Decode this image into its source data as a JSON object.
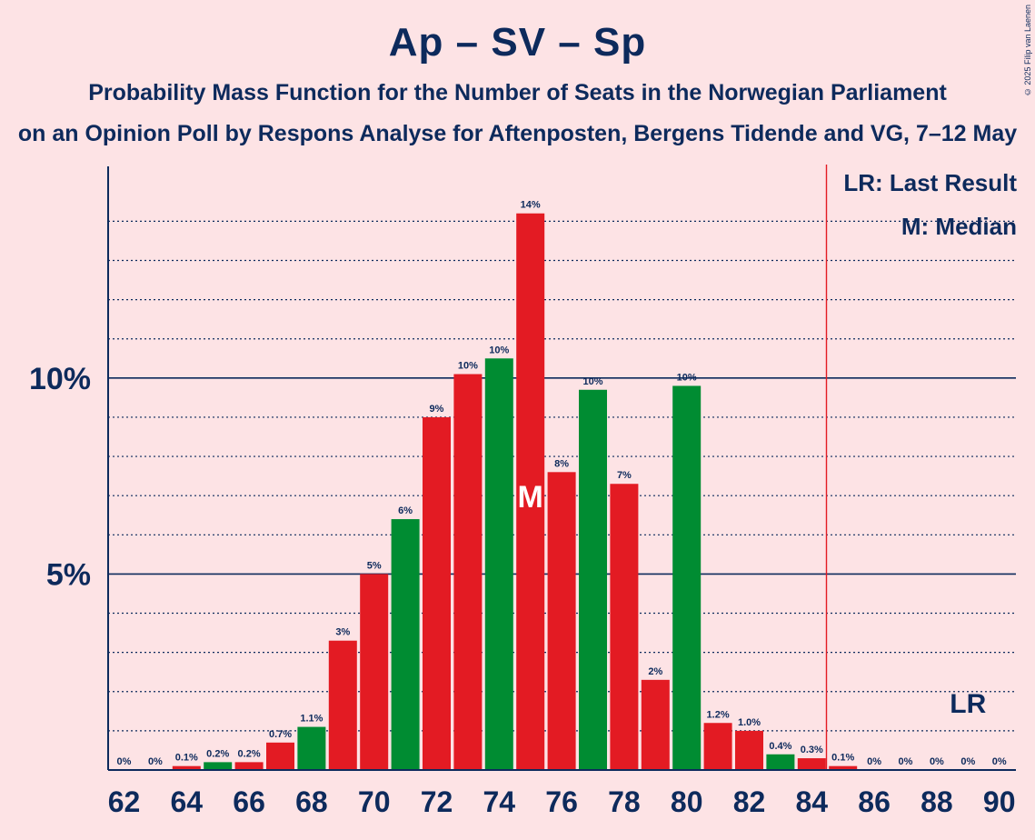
{
  "title": "Ap – SV – Sp",
  "subtitle": "Probability Mass Function for the Number of Seats in the Norwegian Parliament",
  "subtitle2": "on an Opinion Poll by Respons Analyse for Aftenposten, Bergens Tidende and VG, 7–12 May",
  "copyright": "© 2025 Filip van Laenen",
  "legend": {
    "last_result": "LR: Last Result",
    "median": "M: Median"
  },
  "markers": {
    "median_label": "M",
    "last_result_label": "LR"
  },
  "colors": {
    "background": "#fde3e5",
    "text": "#0d2a5c",
    "red": "#e31b23",
    "green": "#008c32",
    "lr_line": "#e31b23"
  },
  "chart_data": {
    "type": "bar",
    "x": [
      62,
      63,
      64,
      65,
      66,
      67,
      68,
      69,
      70,
      71,
      72,
      73,
      74,
      75,
      76,
      77,
      78,
      79,
      80,
      81,
      82,
      83,
      84,
      85,
      86,
      87,
      88,
      89,
      90
    ],
    "values": [
      0,
      0,
      0.1,
      0.2,
      0.2,
      0.7,
      1.1,
      3.3,
      5.0,
      6.4,
      9.0,
      10.1,
      10.5,
      14.2,
      7.6,
      9.7,
      7.3,
      2.3,
      9.8,
      1.2,
      1.0,
      0.4,
      0.3,
      0.1,
      0,
      0,
      0,
      0,
      0
    ],
    "labels": [
      "0%",
      "0%",
      "0.1%",
      "0.2%",
      "0.2%",
      "0.7%",
      "1.1%",
      "3%",
      "5%",
      "6%",
      "9%",
      "10%",
      "10%",
      "14%",
      "8%",
      "10%",
      "7%",
      "2%",
      "10%",
      "1.2%",
      "1.0%",
      "0.4%",
      "0.3%",
      "0.1%",
      "0%",
      "0%",
      "0%",
      "0%",
      "0%"
    ],
    "colors": [
      "red",
      "red",
      "red",
      "green",
      "red",
      "red",
      "green",
      "red",
      "red",
      "green",
      "red",
      "red",
      "green",
      "red",
      "red",
      "green",
      "red",
      "red",
      "green",
      "red",
      "red",
      "green",
      "red",
      "red",
      "red",
      "red",
      "red",
      "red",
      "red"
    ],
    "x_ticks": [
      62,
      64,
      66,
      68,
      70,
      72,
      74,
      76,
      78,
      80,
      82,
      84,
      86,
      88,
      90
    ],
    "y_ticks": [
      {
        "value": 5,
        "label": "5%"
      },
      {
        "value": 10,
        "label": "10%"
      }
    ],
    "ylim": [
      0,
      15.4
    ],
    "median_seat": 75,
    "last_result_seat": 85,
    "grid": "dotted every 1%, solid at 5% and 10%"
  }
}
